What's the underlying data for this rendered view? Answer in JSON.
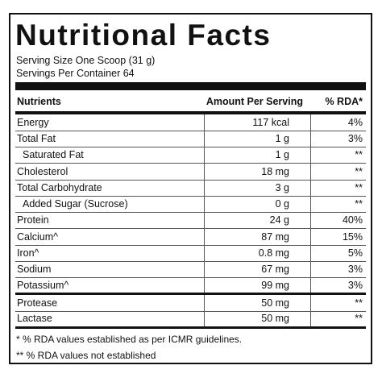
{
  "title": "Nutritional Facts",
  "serving_size": "Serving Size One Scoop (31 g)",
  "servings_per_container": "Servings Per Container 64",
  "header": {
    "nutrients": "Nutrients",
    "amount": "Amount Per Serving",
    "rda": "% RDA*"
  },
  "rows": [
    {
      "name": "Energy",
      "amount": "117 kcal",
      "rda": "4%",
      "indent": false
    },
    {
      "name": "Total Fat",
      "amount": "1 g",
      "rda": "3%",
      "indent": false
    },
    {
      "name": "Saturated Fat",
      "amount": "1 g",
      "rda": "**",
      "indent": true
    },
    {
      "name": "Cholesterol",
      "amount": "18 mg",
      "rda": "**",
      "indent": false
    },
    {
      "name": "Total Carbohydrate",
      "amount": "3 g",
      "rda": "**",
      "indent": false
    },
    {
      "name": "Added Sugar (Sucrose)",
      "amount": "0 g",
      "rda": "**",
      "indent": true
    },
    {
      "name": "Protein",
      "amount": "24 g",
      "rda": "40%",
      "indent": false
    },
    {
      "name": "Calcium^",
      "amount": "87 mg",
      "rda": "15%",
      "indent": false
    },
    {
      "name": "Iron^",
      "amount": "0.8 mg",
      "rda": "5%",
      "indent": false
    },
    {
      "name": "Sodium",
      "amount": "67 mg",
      "rda": "3%",
      "indent": false
    },
    {
      "name": "Potassium^",
      "amount": "99 mg",
      "rda": "3%",
      "indent": false
    },
    {
      "name": "Protease",
      "amount": "50 mg",
      "rda": "**",
      "indent": false
    },
    {
      "name": "Lactase",
      "amount": "50 mg",
      "rda": "**",
      "indent": false
    }
  ],
  "footnotes": [
    "* % RDA values established as per ICMR guidelines.",
    "** % RDA values not established"
  ]
}
